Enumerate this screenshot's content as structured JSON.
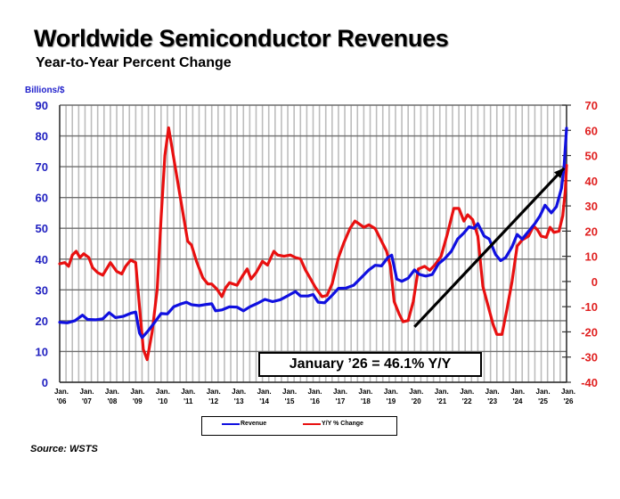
{
  "chart_data": {
    "type": "line",
    "title": "Worldwide Semiconductor Revenues",
    "subtitle": "Year-to-Year Percent Change",
    "ylabel_left": "Billions/$",
    "ylabel_right": "",
    "xlabel": "",
    "ylim_left": [
      0,
      90
    ],
    "ylim_right": [
      -40,
      70
    ],
    "yticks_left": [
      0,
      10,
      20,
      30,
      40,
      50,
      60,
      70,
      80,
      90
    ],
    "yticks_right": [
      -40,
      -30,
      -20,
      -10,
      0,
      10,
      20,
      30,
      40,
      50,
      60,
      70
    ],
    "xlim": [
      2006,
      2026
    ],
    "xtick_labels": [
      {
        "top": "Jan.",
        "bottom": "'06"
      },
      {
        "top": "Jan.",
        "bottom": "'07"
      },
      {
        "top": "Jan.",
        "bottom": "'08"
      },
      {
        "top": "Jan.",
        "bottom": "'09"
      },
      {
        "top": "Jan.",
        "bottom": "'10"
      },
      {
        "top": "Jan.",
        "bottom": "'11"
      },
      {
        "top": "Jan.",
        "bottom": "'12"
      },
      {
        "top": "Jan.",
        "bottom": "'13"
      },
      {
        "top": "Jan.",
        "bottom": "'14"
      },
      {
        "top": "Jan.",
        "bottom": "'15"
      },
      {
        "top": "Jan.",
        "bottom": "'16"
      },
      {
        "top": "Jan.",
        "bottom": "'17"
      },
      {
        "top": "Jan.",
        "bottom": "'18"
      },
      {
        "top": "Jan.",
        "bottom": "'19"
      },
      {
        "top": "Jan.",
        "bottom": "'20"
      },
      {
        "top": "Jan.",
        "bottom": "'21"
      },
      {
        "top": "Jan.",
        "bottom": "'22"
      },
      {
        "top": "Jan.",
        "bottom": "'23"
      },
      {
        "top": "Jan.",
        "bottom": "'24"
      },
      {
        "top": "Jan.",
        "bottom": "'25"
      },
      {
        "top": "Jan.",
        "bottom": "'26"
      }
    ],
    "grid": true,
    "legend_position": "bottom-center",
    "series": [
      {
        "name": "Revenue",
        "axis": "left",
        "color": "#1010e0",
        "points": [
          [
            2006.0,
            19.5
          ],
          [
            2006.3,
            19.3
          ],
          [
            2006.6,
            20.0
          ],
          [
            2006.9,
            21.8
          ],
          [
            2007.1,
            20.4
          ],
          [
            2007.4,
            20.3
          ],
          [
            2007.7,
            20.6
          ],
          [
            2007.95,
            22.6
          ],
          [
            2008.2,
            21.0
          ],
          [
            2008.5,
            21.4
          ],
          [
            2008.8,
            22.4
          ],
          [
            2009.0,
            22.8
          ],
          [
            2009.15,
            16.0
          ],
          [
            2009.25,
            14.5
          ],
          [
            2009.5,
            16.8
          ],
          [
            2009.75,
            19.5
          ],
          [
            2010.0,
            22.3
          ],
          [
            2010.25,
            22.2
          ],
          [
            2010.5,
            24.5
          ],
          [
            2010.8,
            25.5
          ],
          [
            2011.0,
            26.0
          ],
          [
            2011.2,
            25.2
          ],
          [
            2011.5,
            24.9
          ],
          [
            2011.8,
            25.3
          ],
          [
            2012.0,
            25.5
          ],
          [
            2012.15,
            23.2
          ],
          [
            2012.4,
            23.5
          ],
          [
            2012.7,
            24.5
          ],
          [
            2013.0,
            24.4
          ],
          [
            2013.25,
            23.2
          ],
          [
            2013.5,
            24.5
          ],
          [
            2013.8,
            25.6
          ],
          [
            2014.1,
            26.9
          ],
          [
            2014.4,
            26.2
          ],
          [
            2014.7,
            26.8
          ],
          [
            2015.0,
            28.1
          ],
          [
            2015.3,
            29.5
          ],
          [
            2015.5,
            28.0
          ],
          [
            2015.8,
            28.0
          ],
          [
            2016.0,
            28.5
          ],
          [
            2016.2,
            26.0
          ],
          [
            2016.45,
            25.8
          ],
          [
            2016.7,
            27.8
          ],
          [
            2017.0,
            30.5
          ],
          [
            2017.3,
            30.6
          ],
          [
            2017.6,
            31.5
          ],
          [
            2017.9,
            34.0
          ],
          [
            2018.2,
            36.5
          ],
          [
            2018.45,
            38.0
          ],
          [
            2018.7,
            37.8
          ],
          [
            2018.95,
            40.5
          ],
          [
            2019.1,
            41.3
          ],
          [
            2019.3,
            33.5
          ],
          [
            2019.5,
            32.8
          ],
          [
            2019.75,
            33.8
          ],
          [
            2020.0,
            36.5
          ],
          [
            2020.2,
            35.0
          ],
          [
            2020.45,
            34.5
          ],
          [
            2020.7,
            35.0
          ],
          [
            2020.95,
            38.5
          ],
          [
            2021.2,
            40.2
          ],
          [
            2021.45,
            42.5
          ],
          [
            2021.7,
            46.5
          ],
          [
            2021.95,
            48.5
          ],
          [
            2022.15,
            50.5
          ],
          [
            2022.35,
            50.0
          ],
          [
            2022.5,
            51.5
          ],
          [
            2022.75,
            47.5
          ],
          [
            2022.95,
            46.5
          ],
          [
            2023.2,
            41.5
          ],
          [
            2023.4,
            39.5
          ],
          [
            2023.6,
            40.5
          ],
          [
            2023.85,
            44.0
          ],
          [
            2024.05,
            48.0
          ],
          [
            2024.25,
            46.5
          ],
          [
            2024.5,
            49.0
          ],
          [
            2024.75,
            51.5
          ],
          [
            2024.95,
            54.0
          ],
          [
            2025.15,
            57.5
          ],
          [
            2025.4,
            55.0
          ],
          [
            2025.6,
            57.0
          ],
          [
            2025.8,
            63.0
          ],
          [
            2025.9,
            70.0
          ],
          [
            2026.0,
            82.5
          ]
        ]
      },
      {
        "name": "Y/Y % Change",
        "axis": "right",
        "color": "#e81010",
        "points": [
          [
            2006.0,
            7.0
          ],
          [
            2006.2,
            7.5
          ],
          [
            2006.35,
            6.0
          ],
          [
            2006.5,
            10.5
          ],
          [
            2006.65,
            12.0
          ],
          [
            2006.8,
            9.5
          ],
          [
            2006.95,
            11.0
          ],
          [
            2007.15,
            9.5
          ],
          [
            2007.3,
            5.5
          ],
          [
            2007.5,
            3.5
          ],
          [
            2007.7,
            2.5
          ],
          [
            2007.85,
            5.0
          ],
          [
            2008.0,
            7.5
          ],
          [
            2008.25,
            4.0
          ],
          [
            2008.45,
            3.0
          ],
          [
            2008.6,
            6.0
          ],
          [
            2008.8,
            8.5
          ],
          [
            2009.0,
            7.5
          ],
          [
            2009.15,
            -10.0
          ],
          [
            2009.3,
            -27.0
          ],
          [
            2009.45,
            -31.0
          ],
          [
            2009.65,
            -20.0
          ],
          [
            2009.85,
            -3.0
          ],
          [
            2010.0,
            25.0
          ],
          [
            2010.15,
            50.0
          ],
          [
            2010.3,
            61.0
          ],
          [
            2010.45,
            52.0
          ],
          [
            2010.7,
            37.0
          ],
          [
            2010.9,
            25.0
          ],
          [
            2011.05,
            16.0
          ],
          [
            2011.2,
            14.5
          ],
          [
            2011.4,
            8.0
          ],
          [
            2011.65,
            1.5
          ],
          [
            2011.85,
            -1.0
          ],
          [
            2012.0,
            -1.0
          ],
          [
            2012.2,
            -3.0
          ],
          [
            2012.4,
            -6.0
          ],
          [
            2012.55,
            -2.5
          ],
          [
            2012.7,
            -0.5
          ],
          [
            2013.0,
            -1.5
          ],
          [
            2013.2,
            2.0
          ],
          [
            2013.4,
            5.0
          ],
          [
            2013.55,
            1.0
          ],
          [
            2013.75,
            3.5
          ],
          [
            2014.0,
            8.0
          ],
          [
            2014.2,
            6.5
          ],
          [
            2014.45,
            12.0
          ],
          [
            2014.6,
            10.5
          ],
          [
            2014.85,
            10.0
          ],
          [
            2015.1,
            10.5
          ],
          [
            2015.3,
            9.5
          ],
          [
            2015.5,
            9.0
          ],
          [
            2015.7,
            4.5
          ],
          [
            2015.9,
            1.0
          ],
          [
            2016.1,
            -2.5
          ],
          [
            2016.35,
            -6.0
          ],
          [
            2016.55,
            -5.5
          ],
          [
            2016.75,
            -1.0
          ],
          [
            2017.0,
            9.5
          ],
          [
            2017.2,
            15.0
          ],
          [
            2017.45,
            21.0
          ],
          [
            2017.65,
            24.0
          ],
          [
            2017.8,
            23.0
          ],
          [
            2018.0,
            21.5
          ],
          [
            2018.2,
            22.5
          ],
          [
            2018.45,
            21.0
          ],
          [
            2018.7,
            16.0
          ],
          [
            2018.9,
            12.0
          ],
          [
            2019.05,
            6.0
          ],
          [
            2019.2,
            -8.0
          ],
          [
            2019.4,
            -13.0
          ],
          [
            2019.55,
            -16.0
          ],
          [
            2019.75,
            -15.5
          ],
          [
            2019.95,
            -8.0
          ],
          [
            2020.15,
            5.0
          ],
          [
            2020.4,
            6.0
          ],
          [
            2020.6,
            4.5
          ],
          [
            2020.8,
            6.5
          ],
          [
            2021.05,
            10.0
          ],
          [
            2021.3,
            19.0
          ],
          [
            2021.55,
            29.0
          ],
          [
            2021.75,
            29.0
          ],
          [
            2021.95,
            24.0
          ],
          [
            2022.1,
            26.5
          ],
          [
            2022.3,
            24.5
          ],
          [
            2022.5,
            18.0
          ],
          [
            2022.7,
            -2.0
          ],
          [
            2022.9,
            -9.5
          ],
          [
            2023.1,
            -17.0
          ],
          [
            2023.25,
            -21.0
          ],
          [
            2023.45,
            -21.0
          ],
          [
            2023.65,
            -11.0
          ],
          [
            2023.85,
            0.0
          ],
          [
            2024.05,
            14.0
          ],
          [
            2024.25,
            16.5
          ],
          [
            2024.5,
            18.0
          ],
          [
            2024.7,
            22.0
          ],
          [
            2024.85,
            20.5
          ],
          [
            2025.0,
            18.0
          ],
          [
            2025.2,
            17.5
          ],
          [
            2025.35,
            21.5
          ],
          [
            2025.5,
            19.5
          ],
          [
            2025.7,
            20.0
          ],
          [
            2025.85,
            26.0
          ],
          [
            2025.95,
            36.0
          ],
          [
            2026.0,
            46.1
          ]
        ]
      }
    ],
    "annotations": [
      {
        "type": "text_box",
        "text": "January ’26 = 46.1% Y/Y"
      },
      {
        "type": "arrow",
        "from": [
          2020.0,
          -18.0
        ],
        "to": [
          2025.9,
          45.0
        ],
        "color": "#000000"
      }
    ]
  },
  "legend": {
    "items": [
      {
        "label": "Revenue",
        "color": "#1010e0"
      },
      {
        "label": "Y/Y % Change",
        "color": "#e81010"
      }
    ]
  },
  "source": "Source: WSTS"
}
